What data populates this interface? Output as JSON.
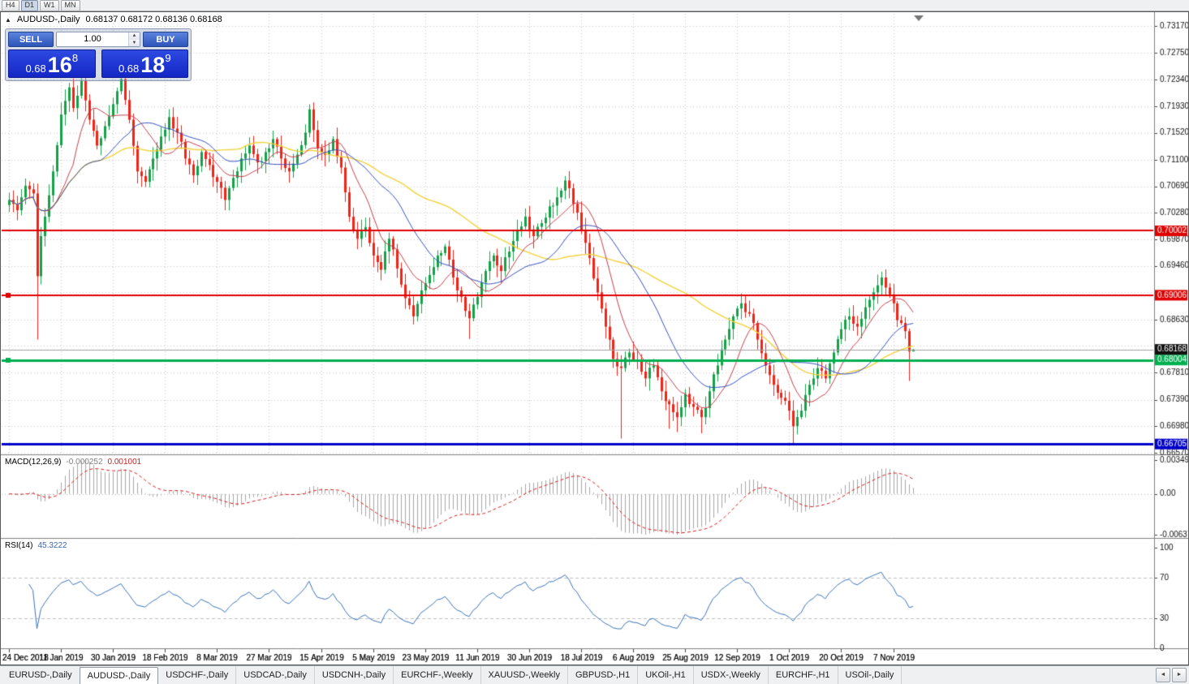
{
  "toolbar": {
    "buttons": [
      "H4",
      "D1",
      "W1",
      "MN"
    ]
  },
  "chart": {
    "collapse_icon": "▲",
    "title_symbol": "AUDUSD-,Daily",
    "ohlc_text": "0.68137 0.68172 0.68136 0.68168"
  },
  "trade_panel": {
    "sell_label": "SELL",
    "buy_label": "BUY",
    "lot_value": "1.00",
    "spin_up": "▲",
    "spin_down": "▼",
    "sell_price": {
      "prefix": "0.68",
      "big": "16",
      "sup": "8"
    },
    "buy_price": {
      "prefix": "0.68",
      "big": "18",
      "sup": "9"
    }
  },
  "chart_data": {
    "type": "candlestick",
    "symbol": "AUDUSD-,Daily",
    "grid": true,
    "candles_count": 227,
    "colors": {
      "up": "#16a04a",
      "down": "#ee2418",
      "wick_up": "#16a04a",
      "wick_down": "#ee2418",
      "grid": "#c9c9c9",
      "current_price_line": "#a0a0a0",
      "macd_hist": "#a6a6a6",
      "macd_signal": "#d02020",
      "rsi_line": "#3b74b8"
    },
    "price_axis": {
      "labels": [
        "0.73170",
        "0.72750",
        "0.72340",
        "0.71930",
        "0.71520",
        "0.71100",
        "0.70690",
        "0.70280",
        "0.69870",
        "0.69460",
        "0.69050",
        "0.68630",
        "0.68220",
        "0.67810",
        "0.67390",
        "0.66980",
        "0.66570"
      ],
      "current": {
        "label": "0.68168",
        "price": 0.68168,
        "color": "#111111"
      }
    },
    "h_lines": [
      {
        "price": 0.70002,
        "label": "0.70002",
        "color": "#e00000",
        "width": 2,
        "handle_left": false
      },
      {
        "price": 0.69006,
        "label": "0.69006",
        "color": "#e00000",
        "width": 2,
        "handle_left": true
      },
      {
        "price": 0.68004,
        "label": "0.68004",
        "color": "#00b050",
        "width": 3,
        "handle_left": true
      },
      {
        "price": 0.66705,
        "label": "0.66705",
        "color": "#0000cc",
        "width": 3,
        "handle_left": false
      }
    ],
    "x_labels": [
      {
        "label": "24 Dec 2018",
        "index": 0
      },
      {
        "label": "11 Jan 2019",
        "index": 13
      },
      {
        "label": "30 Jan 2019",
        "index": 26
      },
      {
        "label": "18 Feb 2019",
        "index": 39
      },
      {
        "label": "8 Mar 2019",
        "index": 52
      },
      {
        "label": "27 Mar 2019",
        "index": 65
      },
      {
        "label": "15 Apr 2019",
        "index": 78
      },
      {
        "label": "5 May 2019",
        "index": 91
      },
      {
        "label": "23 May 2019",
        "index": 104
      },
      {
        "label": "11 Jun 2019",
        "index": 117
      },
      {
        "label": "30 Jun 2019",
        "index": 130
      },
      {
        "label": "18 Jul 2019",
        "index": 143
      },
      {
        "label": "6 Aug 2019",
        "index": 156
      },
      {
        "label": "25 Aug 2019",
        "index": 169
      },
      {
        "label": "12 Sep 2019",
        "index": 182
      },
      {
        "label": "1 Oct 2019",
        "index": 195
      },
      {
        "label": "20 Oct 2019",
        "index": 208
      },
      {
        "label": "7 Nov 2019",
        "index": 221
      }
    ],
    "close_anchors": [
      [
        0,
        0.7048
      ],
      [
        2,
        0.7032
      ],
      [
        4,
        0.707
      ],
      [
        6,
        0.7058
      ],
      [
        7,
        0.693
      ],
      [
        8,
        0.6992
      ],
      [
        9,
        0.7022
      ],
      [
        11,
        0.7092
      ],
      [
        13,
        0.718
      ],
      [
        15,
        0.7222
      ],
      [
        16,
        0.719
      ],
      [
        18,
        0.7232
      ],
      [
        20,
        0.7172
      ],
      [
        22,
        0.7132
      ],
      [
        24,
        0.7162
      ],
      [
        26,
        0.7196
      ],
      [
        28,
        0.7235
      ],
      [
        30,
        0.7172
      ],
      [
        32,
        0.7092
      ],
      [
        34,
        0.7076
      ],
      [
        36,
        0.7112
      ],
      [
        38,
        0.7146
      ],
      [
        40,
        0.7176
      ],
      [
        42,
        0.7152
      ],
      [
        44,
        0.7112
      ],
      [
        46,
        0.7086
      ],
      [
        48,
        0.7122
      ],
      [
        50,
        0.7102
      ],
      [
        52,
        0.7076
      ],
      [
        54,
        0.7048
      ],
      [
        56,
        0.7082
      ],
      [
        58,
        0.7112
      ],
      [
        60,
        0.7132
      ],
      [
        62,
        0.7106
      ],
      [
        64,
        0.7122
      ],
      [
        66,
        0.7142
      ],
      [
        68,
        0.7112
      ],
      [
        70,
        0.7092
      ],
      [
        72,
        0.7118
      ],
      [
        74,
        0.7152
      ],
      [
        75,
        0.7188
      ],
      [
        76,
        0.7156
      ],
      [
        77,
        0.7128
      ],
      [
        79,
        0.7118
      ],
      [
        81,
        0.7142
      ],
      [
        83,
        0.7098
      ],
      [
        85,
        0.7022
      ],
      [
        87,
        0.6988
      ],
      [
        89,
        0.7006
      ],
      [
        91,
        0.6962
      ],
      [
        93,
        0.694
      ],
      [
        95,
        0.6988
      ],
      [
        97,
        0.6942
      ],
      [
        99,
        0.6896
      ],
      [
        101,
        0.6868
      ],
      [
        103,
        0.6908
      ],
      [
        105,
        0.6932
      ],
      [
        107,
        0.6962
      ],
      [
        109,
        0.6976
      ],
      [
        111,
        0.6928
      ],
      [
        113,
        0.6898
      ],
      [
        115,
        0.6865
      ],
      [
        117,
        0.6898
      ],
      [
        119,
        0.6938
      ],
      [
        121,
        0.6962
      ],
      [
        123,
        0.6938
      ],
      [
        125,
        0.6968
      ],
      [
        127,
        0.7
      ],
      [
        129,
        0.7022
      ],
      [
        131,
        0.6992
      ],
      [
        133,
        0.7012
      ],
      [
        135,
        0.7038
      ],
      [
        137,
        0.7052
      ],
      [
        139,
        0.7078
      ],
      [
        141,
        0.7042
      ],
      [
        143,
        0.7002
      ],
      [
        145,
        0.6958
      ],
      [
        147,
        0.6905
      ],
      [
        149,
        0.6852
      ],
      [
        151,
        0.6802
      ],
      [
        153,
        0.6788
      ],
      [
        155,
        0.6812
      ],
      [
        157,
        0.6798
      ],
      [
        159,
        0.6772
      ],
      [
        161,
        0.6792
      ],
      [
        163,
        0.6752
      ],
      [
        165,
        0.6732
      ],
      [
        167,
        0.6712
      ],
      [
        169,
        0.6748
      ],
      [
        171,
        0.6728
      ],
      [
        173,
        0.6712
      ],
      [
        175,
        0.6752
      ],
      [
        177,
        0.6792
      ],
      [
        179,
        0.6832
      ],
      [
        181,
        0.6868
      ],
      [
        183,
        0.6888
      ],
      [
        185,
        0.6872
      ],
      [
        187,
        0.6832
      ],
      [
        189,
        0.6792
      ],
      [
        191,
        0.6762
      ],
      [
        193,
        0.6742
      ],
      [
        195,
        0.6722
      ],
      [
        196,
        0.6698
      ],
      [
        198,
        0.6722
      ],
      [
        200,
        0.6762
      ],
      [
        202,
        0.6788
      ],
      [
        204,
        0.6772
      ],
      [
        206,
        0.6812
      ],
      [
        208,
        0.6848
      ],
      [
        210,
        0.6868
      ],
      [
        212,
        0.6852
      ],
      [
        214,
        0.6882
      ],
      [
        216,
        0.6905
      ],
      [
        218,
        0.6928
      ],
      [
        220,
        0.6902
      ],
      [
        221,
        0.6888
      ],
      [
        222,
        0.6862
      ],
      [
        224,
        0.6845
      ],
      [
        225,
        0.68137
      ],
      [
        226,
        0.68168
      ]
    ],
    "wick_overrides": {
      "7": {
        "low": 0.6832
      },
      "18": {
        "high": 0.7243
      },
      "28": {
        "high": 0.7244
      },
      "75": {
        "high": 0.7196
      },
      "115": {
        "low": 0.6833
      },
      "139": {
        "high": 0.7085
      },
      "153": {
        "low": 0.6679
      },
      "165": {
        "low": 0.6694
      },
      "167": {
        "low": 0.6689
      },
      "173": {
        "low": 0.6687
      },
      "196": {
        "low": 0.6672
      },
      "218": {
        "high": 0.6937
      },
      "225": {
        "low": 0.6768
      },
      "226": {
        "high": 0.68172,
        "low": 0.68136
      }
    },
    "moving_averages": [
      {
        "period": 52,
        "color": "#f2d23e",
        "width": 1.4
      },
      {
        "period": 10,
        "color": "#c5404e",
        "width": 1
      },
      {
        "period": 24,
        "color": "#3752c0",
        "width": 1
      }
    ],
    "macd": {
      "label": "MACD(12,26,9)",
      "value_main": "-0.000252",
      "value_signal": "0.001001",
      "params": [
        12,
        26,
        9
      ],
      "axis": [
        "0.00349",
        "0.00",
        "-0.00637"
      ]
    },
    "rsi": {
      "label": "RSI(14)",
      "value_text": "45.3222",
      "period": 14,
      "levels": [
        70,
        30
      ],
      "axis": [
        "100",
        "70",
        "30",
        "0"
      ]
    }
  },
  "bottom_tabs": {
    "scroll_left": "◄",
    "scroll_right": "►",
    "tabs": [
      {
        "label": "EURUSD-,Daily",
        "active": false
      },
      {
        "label": "AUDUSD-,Daily",
        "active": true
      },
      {
        "label": "USDCHF-,Daily",
        "active": false
      },
      {
        "label": "USDCAD-,Daily",
        "active": false
      },
      {
        "label": "USDCNH-,Daily",
        "active": false
      },
      {
        "label": "EURCHF-,Weekly",
        "active": false
      },
      {
        "label": "XAUUSD-,Weekly",
        "active": false
      },
      {
        "label": "GBPUSD-,H1",
        "active": false
      },
      {
        "label": "UKOil-,H1",
        "active": false
      },
      {
        "label": "USDX-,Weekly",
        "active": false
      },
      {
        "label": "EURCHF-,H1",
        "active": false
      },
      {
        "label": "USOil-,Daily",
        "active": false
      }
    ]
  }
}
